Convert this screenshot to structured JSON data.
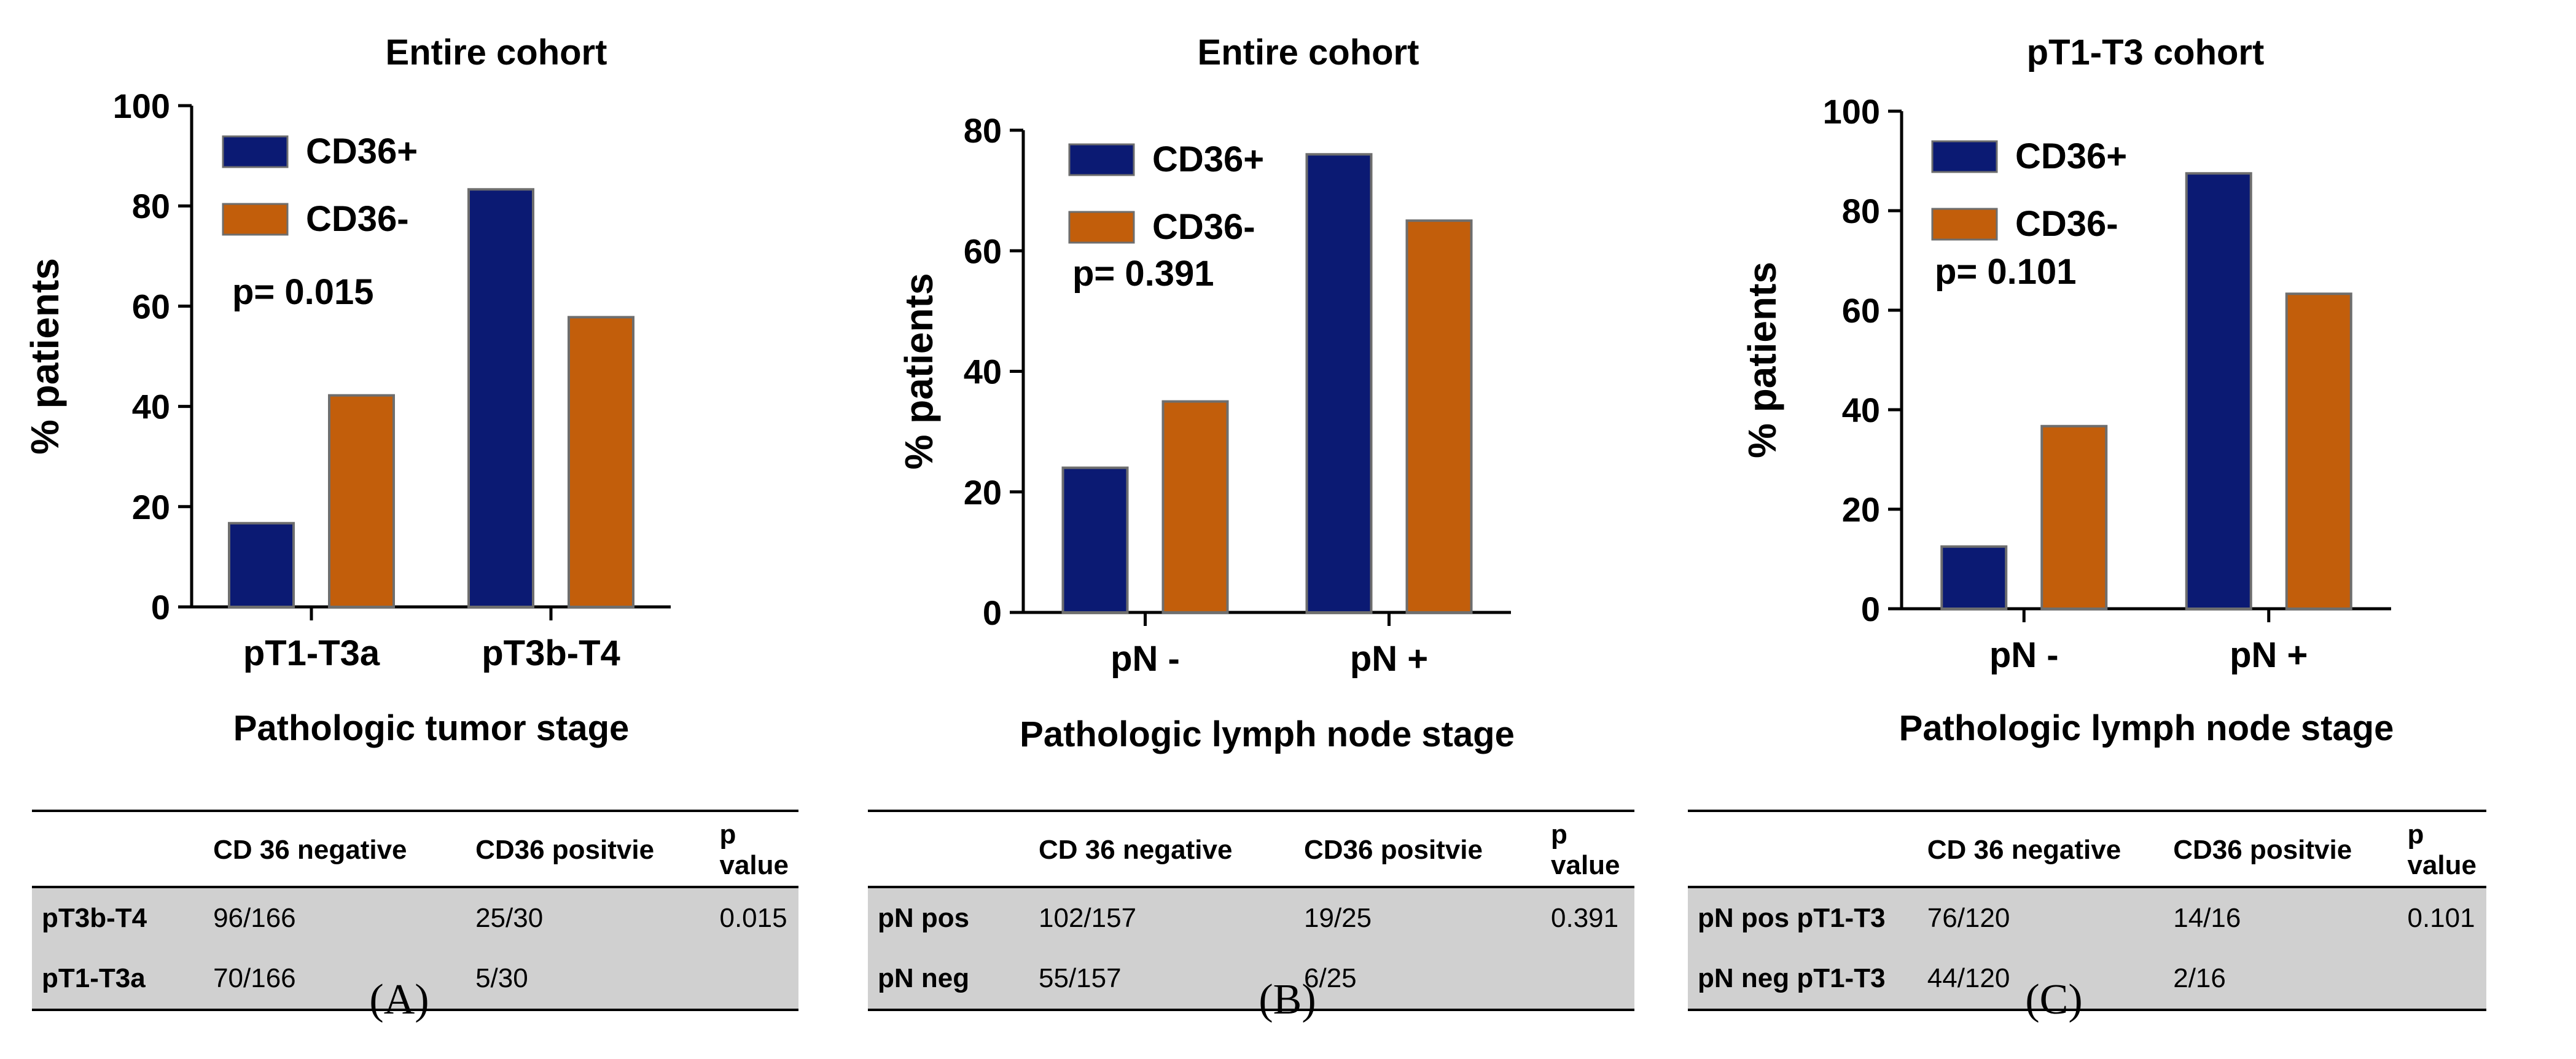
{
  "chart_data": [
    {
      "type": "bar",
      "title": "Entire cohort",
      "xlabel": "Pathologic tumor stage",
      "ylabel": "% patients",
      "ylim": [
        0,
        100
      ],
      "yticks": [
        0,
        20,
        40,
        60,
        80,
        100
      ],
      "categories": [
        "pT1-T3a",
        "pT3b-T4"
      ],
      "series": [
        {
          "name": "CD36+",
          "color": "#0b1a73",
          "values": [
            16.7,
            83.3
          ]
        },
        {
          "name": "CD36-",
          "color": "#c25e0b",
          "values": [
            42.2,
            57.8
          ]
        }
      ],
      "annotation": "p= 0.015",
      "legend_position": "top-left",
      "table": {
        "headers": [
          "",
          "CD 36 negative",
          "CD36 positvie",
          "p value"
        ],
        "rows": [
          [
            "pT3b-T4",
            "96/166",
            "25/30",
            "0.015"
          ],
          [
            "pT1-T3a",
            "70/166",
            "5/30",
            ""
          ]
        ]
      },
      "panel_label": "(A)"
    },
    {
      "type": "bar",
      "title": "Entire cohort",
      "xlabel": "Pathologic lymph node stage",
      "ylabel": "% patients",
      "ylim": [
        0,
        80
      ],
      "yticks": [
        0,
        20,
        40,
        60,
        80
      ],
      "categories": [
        "pN -",
        "pN +"
      ],
      "series": [
        {
          "name": "CD36+",
          "color": "#0b1a73",
          "values": [
            24.0,
            76.0
          ]
        },
        {
          "name": "CD36-",
          "color": "#c25e0b",
          "values": [
            35.0,
            65.0
          ]
        }
      ],
      "annotation": "p= 0.391",
      "legend_position": "top-left",
      "table": {
        "headers": [
          "",
          "CD 36 negative",
          "CD36 positvie",
          "p value"
        ],
        "rows": [
          [
            "pN pos",
            "102/157",
            "19/25",
            "0.391"
          ],
          [
            "pN neg",
            "55/157",
            "6/25",
            ""
          ]
        ]
      },
      "panel_label": "(B)"
    },
    {
      "type": "bar",
      "title": "pT1-T3 cohort",
      "xlabel": "Pathologic lymph node stage",
      "ylabel": "% patients",
      "ylim": [
        0,
        100
      ],
      "yticks": [
        0,
        20,
        40,
        60,
        80,
        100
      ],
      "categories": [
        "pN -",
        "pN +"
      ],
      "series": [
        {
          "name": "CD36+",
          "color": "#0b1a73",
          "values": [
            12.5,
            87.5
          ]
        },
        {
          "name": "CD36-",
          "color": "#c25e0b",
          "values": [
            36.7,
            63.3
          ]
        }
      ],
      "annotation": "p= 0.101",
      "legend_position": "top-left",
      "table": {
        "headers": [
          "",
          "CD 36 negative",
          "CD36 positvie",
          "p value"
        ],
        "rows": [
          [
            "pN pos pT1-T3",
            "76/120",
            "14/16",
            "0.101"
          ],
          [
            "pN neg pT1-T3",
            "44/120",
            "2/16",
            ""
          ]
        ]
      },
      "panel_label": "(C)"
    }
  ]
}
